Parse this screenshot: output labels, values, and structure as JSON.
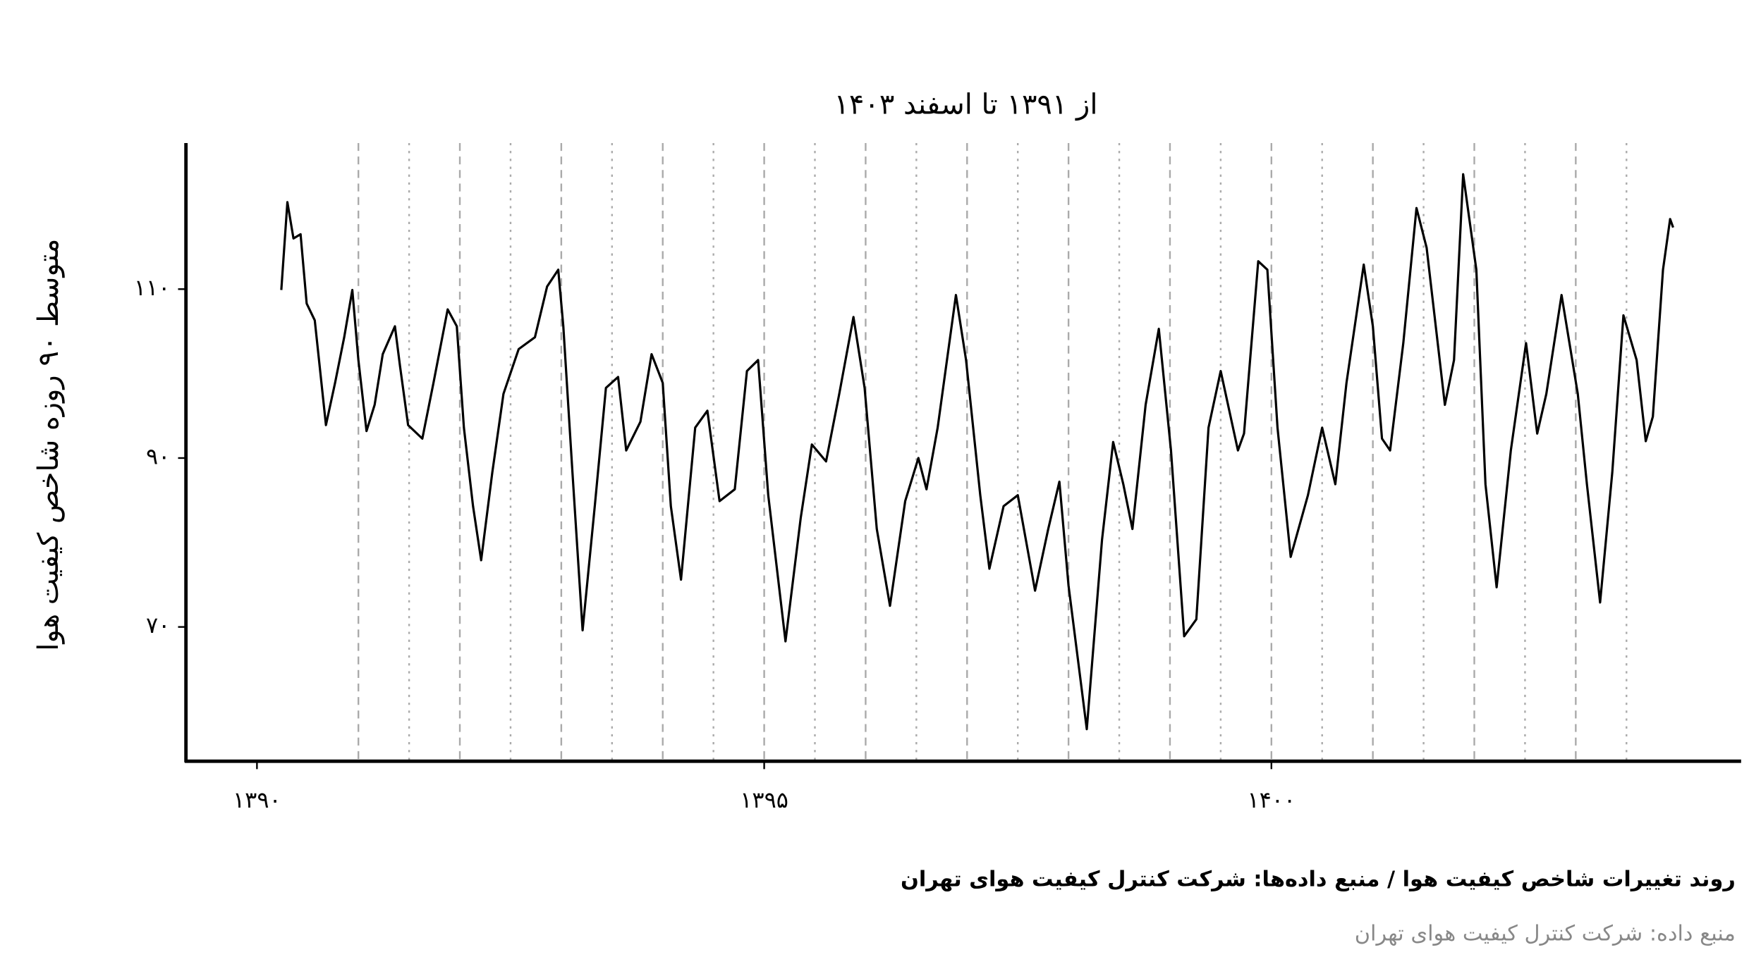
{
  "chart_data": {
    "type": "line",
    "title": "از ۱۳۹۱ تا اسفند ۱۴۰۳",
    "y_label": "متوسط ۹۰ روزه شاخص کیفیت هوا",
    "caption": "روند تغییرات شاخص کیفیت هوا / منبع داده‌ها: شرکت کنترل کیفیت هوای تهران",
    "source": "منبع داده: شرکت کنترل کیفیت هوای تهران",
    "color": "#000000",
    "xlim": [
      1389.3,
      1404.63
    ],
    "ylim": [
      54.1,
      127.3
    ],
    "xticks": [
      {
        "value": 1390,
        "label": "۱۳۹۰"
      },
      {
        "value": 1395,
        "label": "۱۳۹۵"
      },
      {
        "value": 1400,
        "label": "۱۴۰۰"
      }
    ],
    "yticks": [
      {
        "value": 70,
        "label": "۷۰"
      },
      {
        "value": 90,
        "label": "۹۰"
      },
      {
        "value": 110,
        "label": "۱۱۰"
      }
    ],
    "year_lines": [
      1391,
      1392,
      1393,
      1394,
      1395,
      1396,
      1397,
      1398,
      1399,
      1400,
      1401,
      1402,
      1403
    ],
    "half_year_lines": [
      1391.5,
      1392.5,
      1393.5,
      1394.5,
      1395.5,
      1396.5,
      1397.5,
      1398.5,
      1399.5,
      1400.5,
      1401.5,
      1402.5,
      1403.5
    ],
    "x": [
      1390.24,
      1390.3,
      1390.36,
      1390.43,
      1390.49,
      1390.57,
      1390.68,
      1390.77,
      1390.86,
      1390.94,
      1391.0,
      1391.08,
      1391.16,
      1391.24,
      1391.36,
      1391.41,
      1391.49,
      1391.63,
      1391.74,
      1391.88,
      1391.97,
      1392.04,
      1392.13,
      1392.21,
      1392.32,
      1392.43,
      1392.58,
      1392.74,
      1392.86,
      1392.97,
      1393.02,
      1393.11,
      1393.21,
      1393.33,
      1393.44,
      1393.56,
      1393.64,
      1393.78,
      1393.89,
      1394.0,
      1394.08,
      1394.18,
      1394.32,
      1394.44,
      1394.56,
      1394.71,
      1394.83,
      1394.94,
      1395.04,
      1395.21,
      1395.36,
      1395.47,
      1395.61,
      1395.74,
      1395.88,
      1395.99,
      1396.11,
      1396.24,
      1396.39,
      1396.52,
      1396.6,
      1396.71,
      1396.89,
      1396.99,
      1397.13,
      1397.22,
      1397.36,
      1397.5,
      1397.67,
      1397.8,
      1397.91,
      1398.0,
      1398.18,
      1398.33,
      1398.44,
      1398.54,
      1398.63,
      1398.76,
      1398.89,
      1399.01,
      1399.14,
      1399.26,
      1399.38,
      1399.5,
      1399.67,
      1399.73,
      1399.87,
      1399.96,
      1400.06,
      1400.19,
      1400.36,
      1400.5,
      1400.63,
      1400.74,
      1400.91,
      1401.0,
      1401.09,
      1401.17,
      1401.3,
      1401.43,
      1401.53,
      1401.71,
      1401.8,
      1401.89,
      1402.02,
      1402.11,
      1402.22,
      1402.36,
      1402.51,
      1402.62,
      1402.71,
      1402.86,
      1403.02,
      1403.11,
      1403.24,
      1403.36,
      1403.47,
      1403.6,
      1403.69,
      1403.76,
      1403.86,
      1403.93,
      1403.96
    ],
    "values": [
      109.9,
      120.3,
      116.0,
      116.5,
      108.3,
      106.3,
      93.9,
      98.9,
      104.3,
      109.9,
      101.6,
      93.2,
      96.3,
      102.3,
      105.6,
      100.9,
      93.9,
      92.3,
      98.9,
      107.6,
      105.6,
      93.6,
      84.3,
      77.9,
      88.3,
      97.6,
      102.9,
      104.3,
      110.3,
      112.3,
      105.6,
      88.3,
      69.6,
      84.3,
      98.3,
      99.6,
      90.9,
      94.3,
      102.3,
      98.9,
      84.3,
      75.6,
      93.6,
      95.6,
      84.9,
      86.3,
      100.3,
      101.6,
      85.6,
      68.3,
      82.9,
      91.6,
      89.6,
      97.6,
      106.7,
      98.3,
      81.6,
      72.5,
      84.9,
      90.0,
      86.3,
      93.6,
      109.3,
      101.6,
      85.6,
      76.9,
      84.3,
      85.6,
      74.3,
      81.6,
      87.2,
      74.9,
      57.9,
      80.3,
      91.9,
      86.9,
      81.6,
      96.3,
      105.3,
      90.9,
      68.9,
      70.9,
      93.6,
      100.3,
      90.9,
      92.9,
      113.3,
      112.3,
      93.6,
      78.3,
      85.6,
      93.6,
      86.9,
      98.9,
      112.9,
      105.6,
      92.3,
      90.9,
      103.6,
      119.6,
      114.9,
      96.3,
      101.6,
      123.6,
      112.3,
      86.9,
      74.7,
      90.9,
      103.6,
      92.9,
      97.6,
      109.3,
      97.6,
      86.9,
      72.9,
      88.3,
      106.9,
      101.6,
      92.0,
      94.9,
      112.3,
      118.3,
      117.3
    ]
  }
}
